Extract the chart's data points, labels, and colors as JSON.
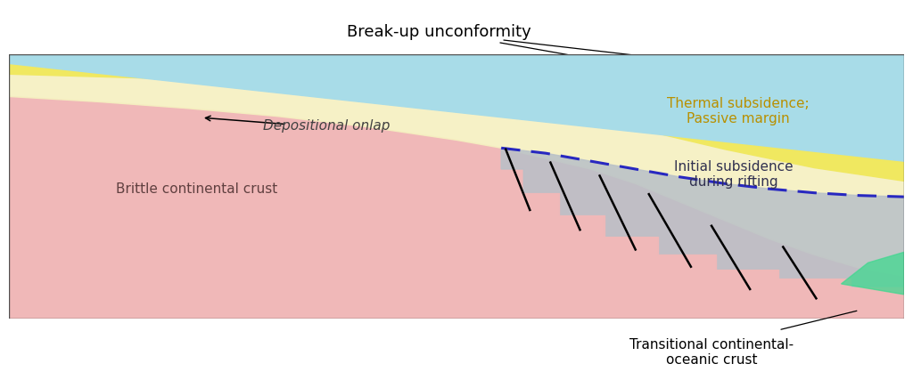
{
  "background_color": "#ffffff",
  "fig_width": 10.24,
  "fig_height": 4.36,
  "colors": {
    "pink_crust": "#f0b8b8",
    "cream_layer": "#f5f0c0",
    "yellow_layer": "#f0e860",
    "cyan_layer": "#a8dce8",
    "gray_subsidence": "#b8c0c8",
    "green_accent": "#40d890",
    "dark_blue_dashed": "#2828c0",
    "border": "#505050"
  },
  "labels": {
    "title": "Break-up unconformity",
    "thermal": "Thermal subsidence;\nPassive margin",
    "onlap": "Depositional onlap",
    "brittle": "Brittle continental crust",
    "initial": "Initial subsidence\nduring rifting",
    "transitional": "Transitional continental-\noceanic crust"
  },
  "font_sizes": {
    "title": 13,
    "labels": 11
  }
}
